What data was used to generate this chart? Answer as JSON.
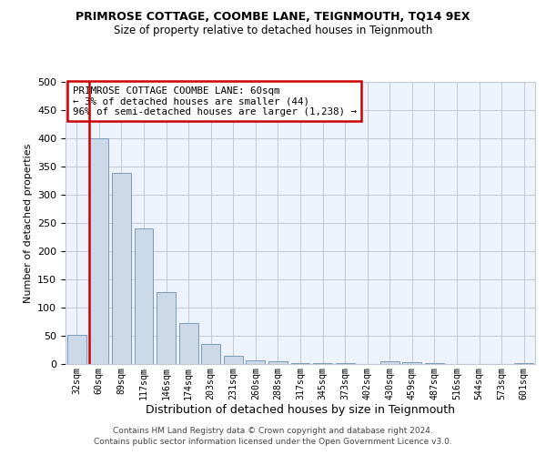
{
  "title": "PRIMROSE COTTAGE, COOMBE LANE, TEIGNMOUTH, TQ14 9EX",
  "subtitle": "Size of property relative to detached houses in Teignmouth",
  "xlabel": "Distribution of detached houses by size in Teignmouth",
  "ylabel": "Number of detached properties",
  "categories": [
    "32sqm",
    "60sqm",
    "89sqm",
    "117sqm",
    "146sqm",
    "174sqm",
    "203sqm",
    "231sqm",
    "260sqm",
    "288sqm",
    "317sqm",
    "345sqm",
    "373sqm",
    "402sqm",
    "430sqm",
    "459sqm",
    "487sqm",
    "516sqm",
    "544sqm",
    "573sqm",
    "601sqm"
  ],
  "values": [
    52,
    400,
    338,
    240,
    128,
    72,
    35,
    15,
    7,
    5,
    2,
    1,
    1,
    0,
    5,
    3,
    1,
    0,
    0,
    0,
    2
  ],
  "bar_color": "#ccd9e8",
  "bar_edge_color": "#7799bb",
  "highlight_index": 1,
  "highlight_color": "#cc0000",
  "annotation_title": "PRIMROSE COTTAGE COOMBE LANE: 60sqm",
  "annotation_line2": "← 3% of detached houses are smaller (44)",
  "annotation_line3": "96% of semi-detached houses are larger (1,238) →",
  "ylim": [
    0,
    500
  ],
  "yticks": [
    0,
    50,
    100,
    150,
    200,
    250,
    300,
    350,
    400,
    450,
    500
  ],
  "bg_color": "#eef2fa",
  "grid_color": "#c0c8d8",
  "footer1": "Contains HM Land Registry data © Crown copyright and database right 2024.",
  "footer2": "Contains public sector information licensed under the Open Government Licence v3.0."
}
